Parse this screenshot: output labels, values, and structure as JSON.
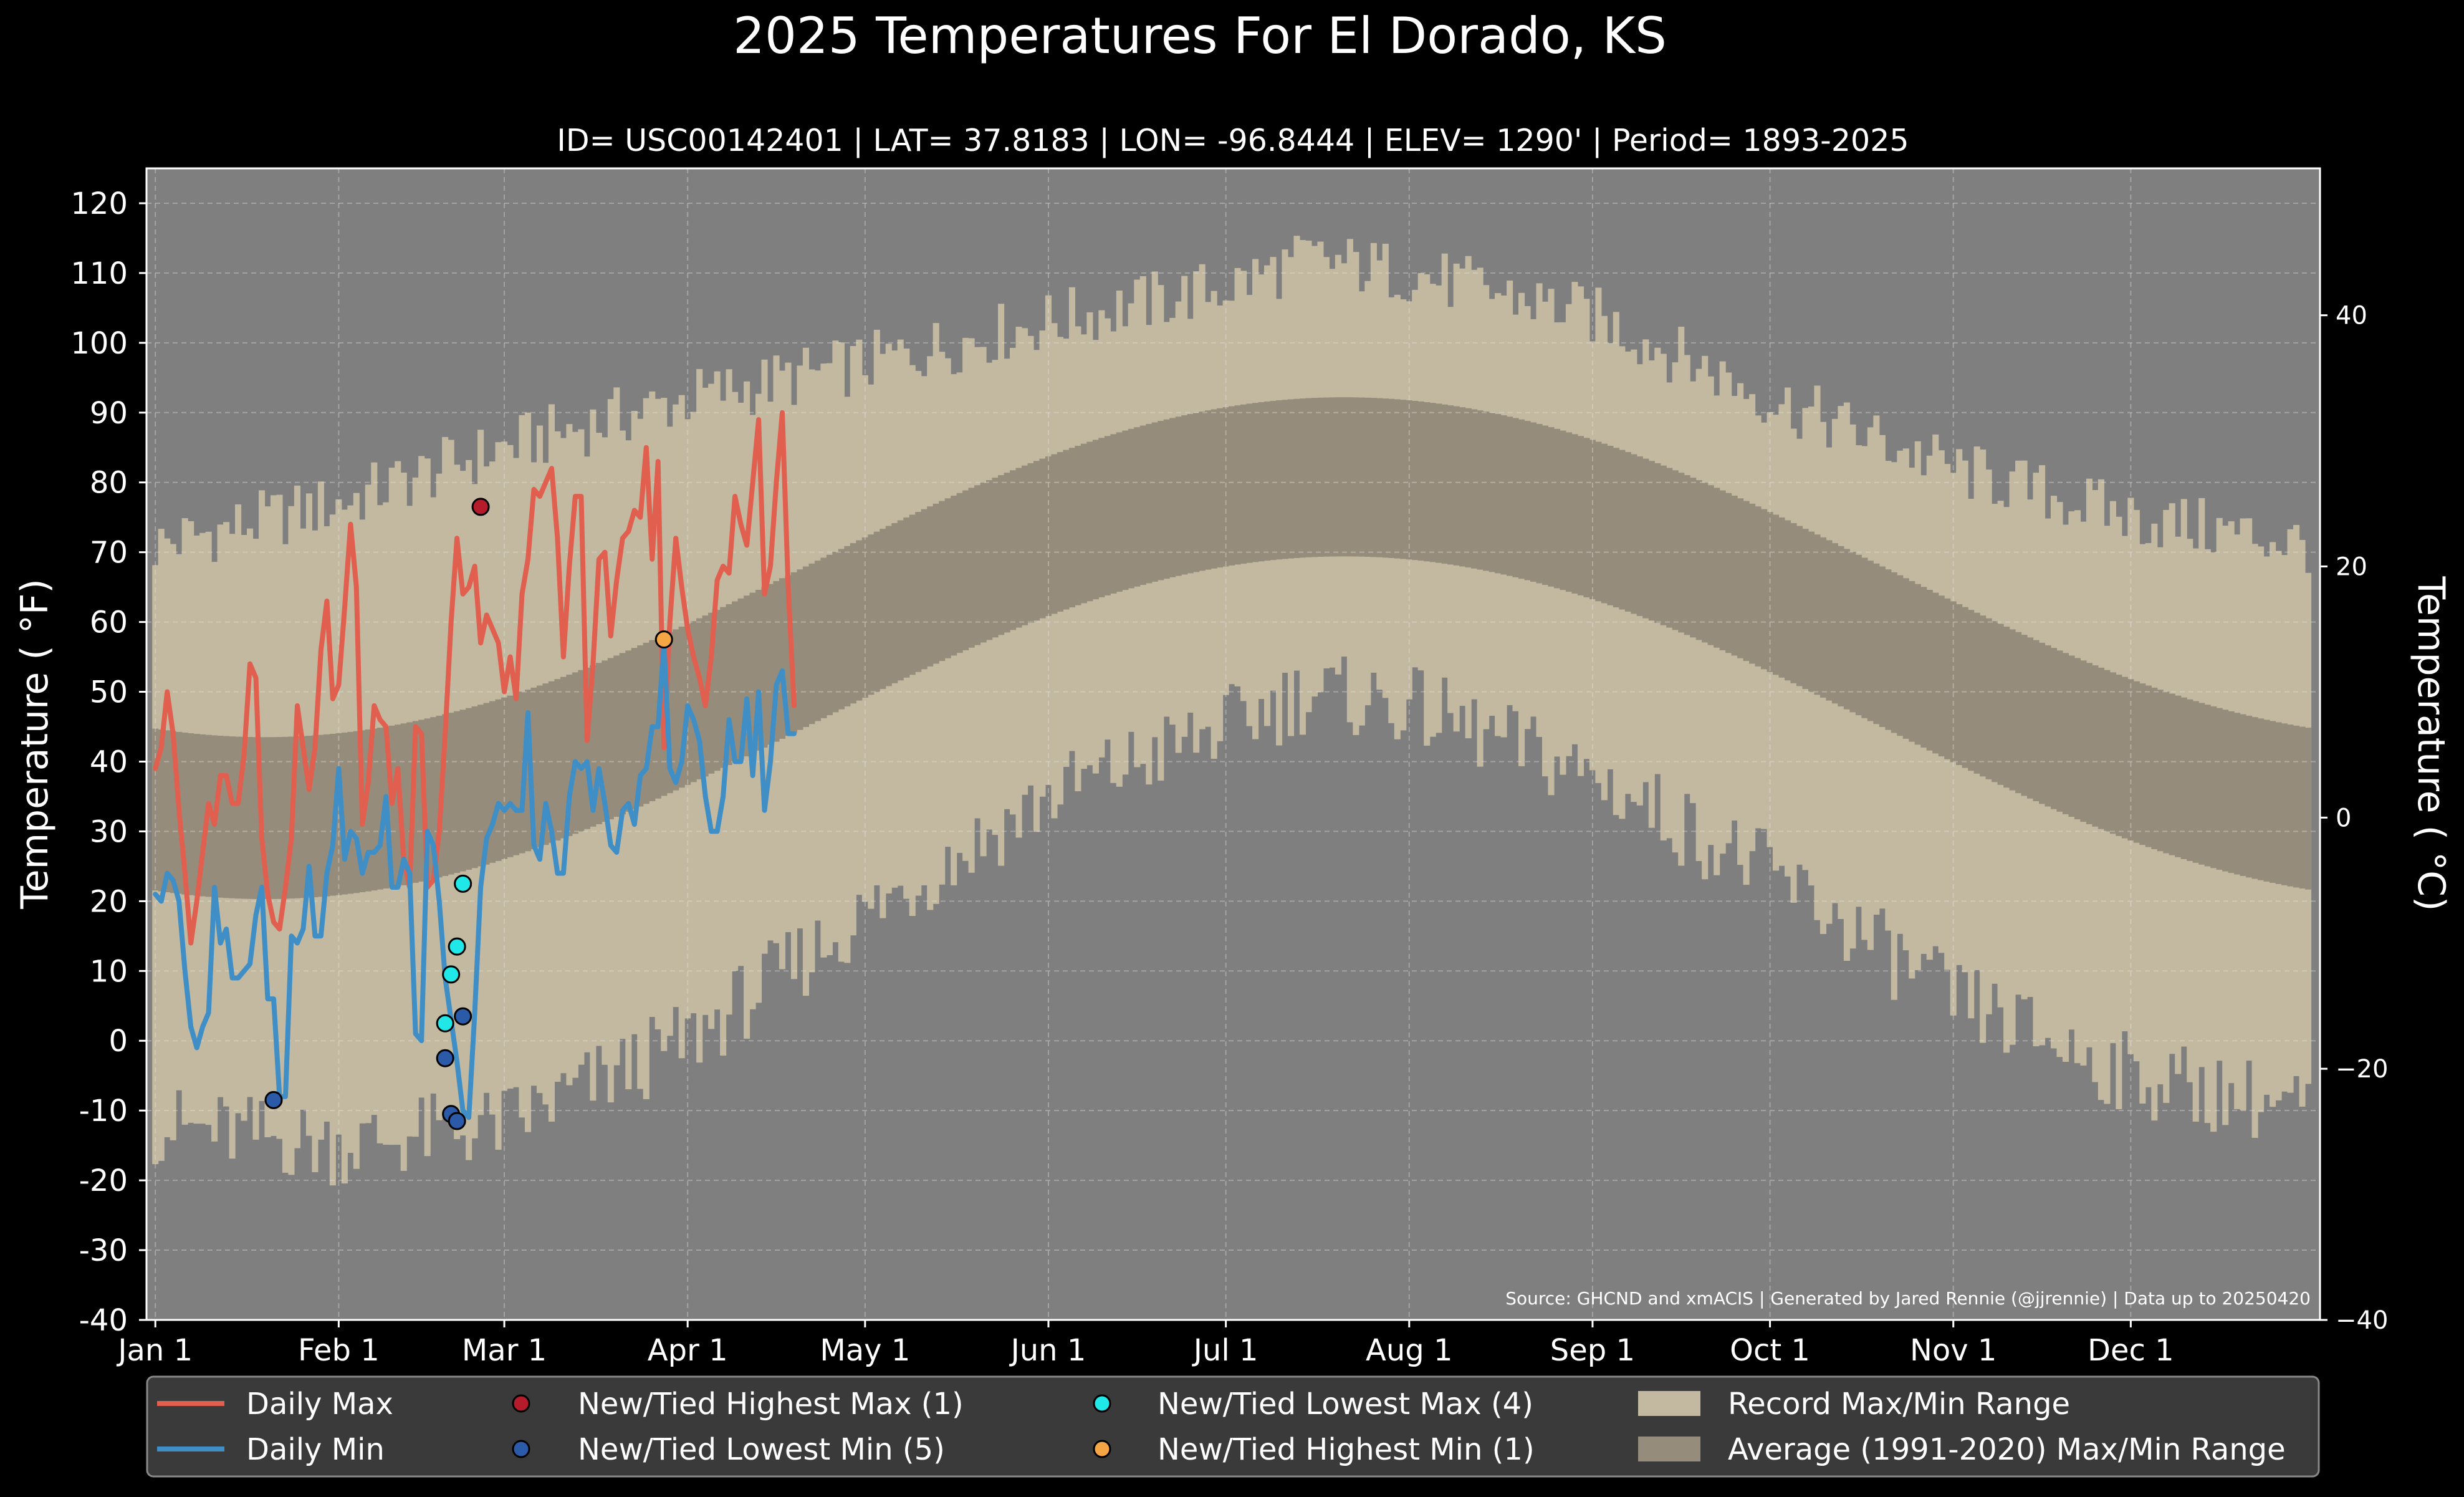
{
  "chart_data": {
    "type": "line",
    "title": "2025 Temperatures For El Dorado, KS",
    "subtitle": "ID= USC00142401 | LAT= 37.8183 | LON= -96.8444 | ELEV= 1290' | Period= 1893-2025",
    "ylabel": "Temperature ( °F)",
    "ylabel_right": "Temperature ( °C)",
    "source": "Source: GHCND and xmACIS | Generated by Jared Rennie (@jjrennie) | Data up to 20250420",
    "ylim_f": [
      -40,
      125
    ],
    "ylim_c": [
      -40,
      51.7
    ],
    "yticks_f": [
      -40,
      -30,
      -20,
      -10,
      0,
      10,
      20,
      30,
      40,
      50,
      60,
      70,
      80,
      90,
      100,
      110,
      120
    ],
    "yticks_c": [
      -40,
      -20,
      0,
      20,
      40
    ],
    "xlim": [
      -1.5,
      366
    ],
    "xticks": [
      {
        "label": "Jan 1",
        "day": 0
      },
      {
        "label": "Feb 1",
        "day": 31
      },
      {
        "label": "Mar 1",
        "day": 59
      },
      {
        "label": "Apr 1",
        "day": 90
      },
      {
        "label": "May 1",
        "day": 120
      },
      {
        "label": "Jun 1",
        "day": 151
      },
      {
        "label": "Jul 1",
        "day": 181
      },
      {
        "label": "Aug 1",
        "day": 212
      },
      {
        "label": "Sep 1",
        "day": 243
      },
      {
        "label": "Oct 1",
        "day": 273
      },
      {
        "label": "Nov 1",
        "day": 304
      },
      {
        "label": "Dec 1",
        "day": 334
      }
    ],
    "grid": true,
    "legend_position": "bottom",
    "record_range_anchors": {
      "days": [
        0,
        31,
        59,
        90,
        120,
        151,
        181,
        195,
        212,
        243,
        273,
        304,
        334,
        365
      ],
      "max": [
        71,
        77,
        85,
        92,
        97,
        103,
        108,
        112,
        110,
        104,
        92,
        82,
        75,
        71
      ],
      "min": [
        -12,
        -15,
        -12,
        0,
        18,
        35,
        45,
        50,
        48,
        38,
        24,
        6,
        -5,
        -10
      ]
    },
    "normal_range": {
      "max_winter": 43.5,
      "max_summer": 92.2,
      "min_winter": 20.3,
      "min_summer": 69.4,
      "peak_day": 201
    },
    "series": [
      {
        "name": "Daily Max",
        "color": "#e15f4f",
        "start_day": 0,
        "values": [
          39,
          42,
          50,
          44,
          33,
          24,
          14,
          20,
          27,
          34,
          31,
          38,
          38,
          34,
          34,
          41,
          54,
          52,
          29,
          21,
          17,
          16,
          22,
          29,
          48,
          42,
          36,
          42,
          56,
          63,
          49,
          51,
          62,
          74,
          65,
          31,
          37,
          48,
          46,
          45,
          34,
          39,
          26,
          22,
          45,
          44,
          22,
          23,
          30,
          44,
          60,
          72,
          64,
          65,
          68,
          57,
          61,
          59,
          57,
          50,
          55,
          49,
          64,
          69,
          79,
          78,
          80,
          82,
          72,
          55,
          68,
          78,
          78,
          43,
          54,
          69,
          70,
          58,
          66,
          72,
          73,
          76,
          75,
          85,
          69,
          83,
          42,
          60,
          72,
          65,
          59,
          55,
          52,
          48,
          55,
          66,
          68,
          67,
          78,
          74,
          71,
          80,
          89,
          64,
          68,
          80,
          90,
          65,
          48
        ]
      },
      {
        "name": "Daily Min",
        "color": "#3f8fc6",
        "start_day": 0,
        "values": [
          21,
          20,
          24,
          23,
          20,
          10,
          2,
          -1,
          2,
          4,
          22,
          14,
          16,
          9,
          9,
          10,
          11,
          18,
          22,
          6,
          6,
          -8,
          -8,
          15,
          14,
          16,
          25,
          15,
          15,
          24,
          28,
          39,
          26,
          30,
          29,
          24,
          27,
          27,
          28,
          35,
          22,
          22,
          26,
          24,
          1,
          0,
          30,
          28,
          20,
          9,
          3,
          -3,
          -10,
          -11,
          4,
          22,
          29,
          31,
          34,
          33,
          34,
          33,
          33,
          47,
          28,
          26,
          34,
          30,
          24,
          24,
          35,
          40,
          39,
          40,
          33,
          39,
          34,
          28,
          27,
          33,
          34,
          31,
          38,
          39,
          45,
          45,
          57,
          39,
          37,
          40,
          48,
          46,
          43,
          35,
          30,
          30,
          35,
          46,
          40,
          40,
          49,
          38,
          50,
          33,
          40,
          51,
          53,
          44,
          44
        ]
      }
    ],
    "legend": [
      {
        "key": "daily_max",
        "label": "Daily Max",
        "kind": "line",
        "color": "#e15f4f"
      },
      {
        "key": "daily_min",
        "label": "Daily Min",
        "kind": "line",
        "color": "#3f8fc6"
      },
      {
        "key": "rec_high_max",
        "label": "New/Tied Highest Max (1)",
        "kind": "dot",
        "color": "#b41c2c"
      },
      {
        "key": "rec_low_min",
        "label": "New/Tied Lowest Min (5)",
        "kind": "dot",
        "color": "#2a5aa8"
      },
      {
        "key": "rec_low_max",
        "label": "New/Tied Lowest Max (4)",
        "kind": "dot",
        "color": "#20e8e8"
      },
      {
        "key": "rec_high_min",
        "label": "New/Tied Highest Min (1)",
        "kind": "dot",
        "color": "#f5a544"
      },
      {
        "key": "record_range",
        "label": "Record Max/Min Range",
        "kind": "patch",
        "color": "#c2b9a0"
      },
      {
        "key": "normal_range",
        "label": "Average (1991-2020) Max/Min Range",
        "kind": "patch",
        "color": "#968c7b"
      }
    ],
    "record_points": [
      {
        "type": "rec_high_max",
        "day": 55,
        "value": 76.5
      },
      {
        "type": "rec_low_min",
        "day": 20,
        "value": -8.5
      },
      {
        "type": "rec_low_min",
        "day": 49,
        "value": -2.5
      },
      {
        "type": "rec_low_min",
        "day": 50,
        "value": -10.5
      },
      {
        "type": "rec_low_min",
        "day": 51,
        "value": -11.5
      },
      {
        "type": "rec_low_min",
        "day": 52,
        "value": 3.5
      },
      {
        "type": "rec_low_max",
        "day": 49,
        "value": 2.5
      },
      {
        "type": "rec_low_max",
        "day": 50,
        "value": 9.5
      },
      {
        "type": "rec_low_max",
        "day": 51,
        "value": 13.5
      },
      {
        "type": "rec_low_max",
        "day": 52,
        "value": 22.5
      },
      {
        "type": "rec_high_min",
        "day": 86,
        "value": 57.5
      }
    ],
    "colors": {
      "background": "#000000",
      "plot_background": "#7f7f7f",
      "record_range": "#c2b9a0",
      "normal_range": "#968c7b",
      "legend_background": "#3a3a3a",
      "text": "#ffffff"
    }
  }
}
